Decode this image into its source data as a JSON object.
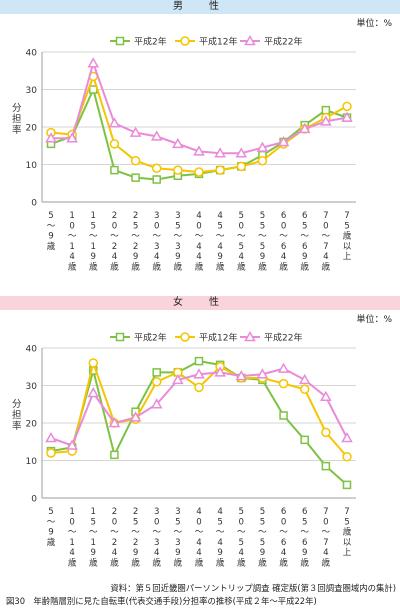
{
  "charts_meta": {
    "male_title": "男　性",
    "female_title": "女　性",
    "unit_label": "単位：%"
  },
  "chart_data": [
    {
      "type": "line",
      "title": "男　性",
      "ylabel": "分担率",
      "ylim": [
        0,
        40
      ],
      "yticks": [
        0,
        10,
        20,
        30,
        40
      ],
      "grid": true,
      "legend": "top-center",
      "categories": [
        "5〜9歳",
        "10〜14歳",
        "15〜19歳",
        "20〜24歳",
        "25〜29歳",
        "30〜34歳",
        "35〜39歳",
        "40〜44歳",
        "45〜49歳",
        "50〜54歳",
        "55〜59歳",
        "60〜64歳",
        "65〜69歳",
        "70〜74歳",
        "75歳以上"
      ],
      "series": [
        {
          "name": "平成2年",
          "color": "#7dc242",
          "marker": "square",
          "values": [
            15.5,
            17.5,
            30.0,
            8.5,
            6.5,
            6.0,
            7.0,
            7.5,
            8.5,
            9.5,
            12.5,
            16.0,
            20.5,
            24.5,
            22.5
          ]
        },
        {
          "name": "平成12年",
          "color": "#f6c400",
          "marker": "circle",
          "values": [
            18.5,
            18.0,
            33.5,
            15.5,
            11.0,
            9.0,
            8.5,
            8.0,
            8.5,
            9.5,
            11.0,
            15.5,
            19.5,
            22.5,
            25.5
          ]
        },
        {
          "name": "平成22年",
          "color": "#e98bd8",
          "marker": "triangle",
          "values": [
            17.0,
            17.0,
            37.0,
            21.0,
            18.5,
            17.5,
            15.5,
            13.5,
            13.0,
            13.0,
            14.5,
            16.0,
            19.5,
            21.5,
            22.5
          ]
        }
      ]
    },
    {
      "type": "line",
      "title": "女　性",
      "ylabel": "分担率",
      "ylim": [
        0,
        40
      ],
      "yticks": [
        0,
        10,
        20,
        30,
        40
      ],
      "grid": true,
      "legend": "top-center",
      "categories": [
        "5〜9歳",
        "10〜14歳",
        "15〜19歳",
        "20〜24歳",
        "25〜29歳",
        "30〜34歳",
        "35〜39歳",
        "40〜44歳",
        "45〜49歳",
        "50〜54歳",
        "55〜59歳",
        "60〜64歳",
        "65〜69歳",
        "70〜74歳",
        "75歳以上"
      ],
      "series": [
        {
          "name": "平成2年",
          "color": "#7dc242",
          "marker": "square",
          "values": [
            12.5,
            13.5,
            34.0,
            11.5,
            23.0,
            33.5,
            33.5,
            36.5,
            35.5,
            32.0,
            31.5,
            22.0,
            15.5,
            8.5,
            3.5
          ]
        },
        {
          "name": "平成12年",
          "color": "#f6c400",
          "marker": "circle",
          "values": [
            12.0,
            12.5,
            36.0,
            20.0,
            21.0,
            31.0,
            33.5,
            29.5,
            35.0,
            32.0,
            32.0,
            30.5,
            29.0,
            17.5,
            11.0
          ]
        },
        {
          "name": "平成22年",
          "color": "#e98bd8",
          "marker": "triangle",
          "values": [
            16.0,
            14.0,
            28.0,
            20.0,
            21.5,
            25.0,
            31.5,
            33.0,
            33.5,
            32.5,
            33.0,
            34.5,
            31.5,
            27.0,
            16.0
          ]
        }
      ]
    }
  ],
  "footer": {
    "source": "資料：第５回近畿圏パーソントリップ調査 確定版(第３回調査圏域内の集計)",
    "caption": "図30　年齢階層別に見た自転車(代表交通手段)分担率の推移(平成２年〜平成22年)"
  }
}
